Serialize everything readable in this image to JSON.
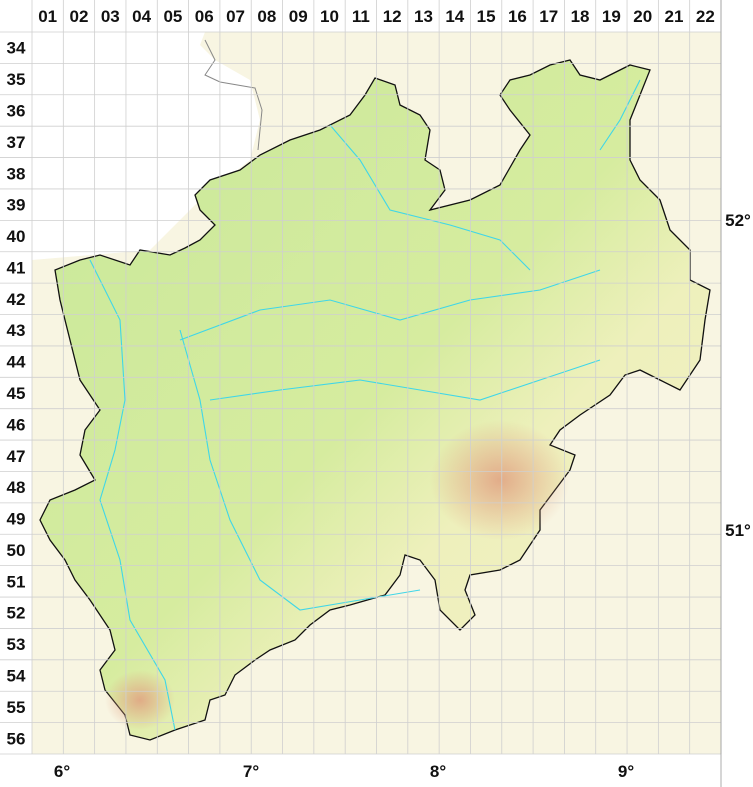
{
  "map": {
    "columns": [
      "01",
      "02",
      "03",
      "04",
      "05",
      "06",
      "07",
      "08",
      "09",
      "10",
      "11",
      "12",
      "13",
      "14",
      "15",
      "16",
      "17",
      "18",
      "19",
      "20",
      "21",
      "22"
    ],
    "rows": [
      "34",
      "35",
      "36",
      "37",
      "38",
      "39",
      "40",
      "41",
      "42",
      "43",
      "44",
      "45",
      "46",
      "47",
      "48",
      "49",
      "50",
      "51",
      "52",
      "53",
      "54",
      "55",
      "56"
    ],
    "longitude_labels": [
      "6°",
      "7°",
      "8°",
      "9°"
    ],
    "latitude_labels": [
      "52°",
      "51°"
    ],
    "colors": {
      "lowland": "#c8e89a",
      "upland": "#f2efc2",
      "highland": "#e3a98a",
      "river": "#3fd6e8",
      "border": "#111111",
      "outside": "#f8f5e2"
    }
  }
}
